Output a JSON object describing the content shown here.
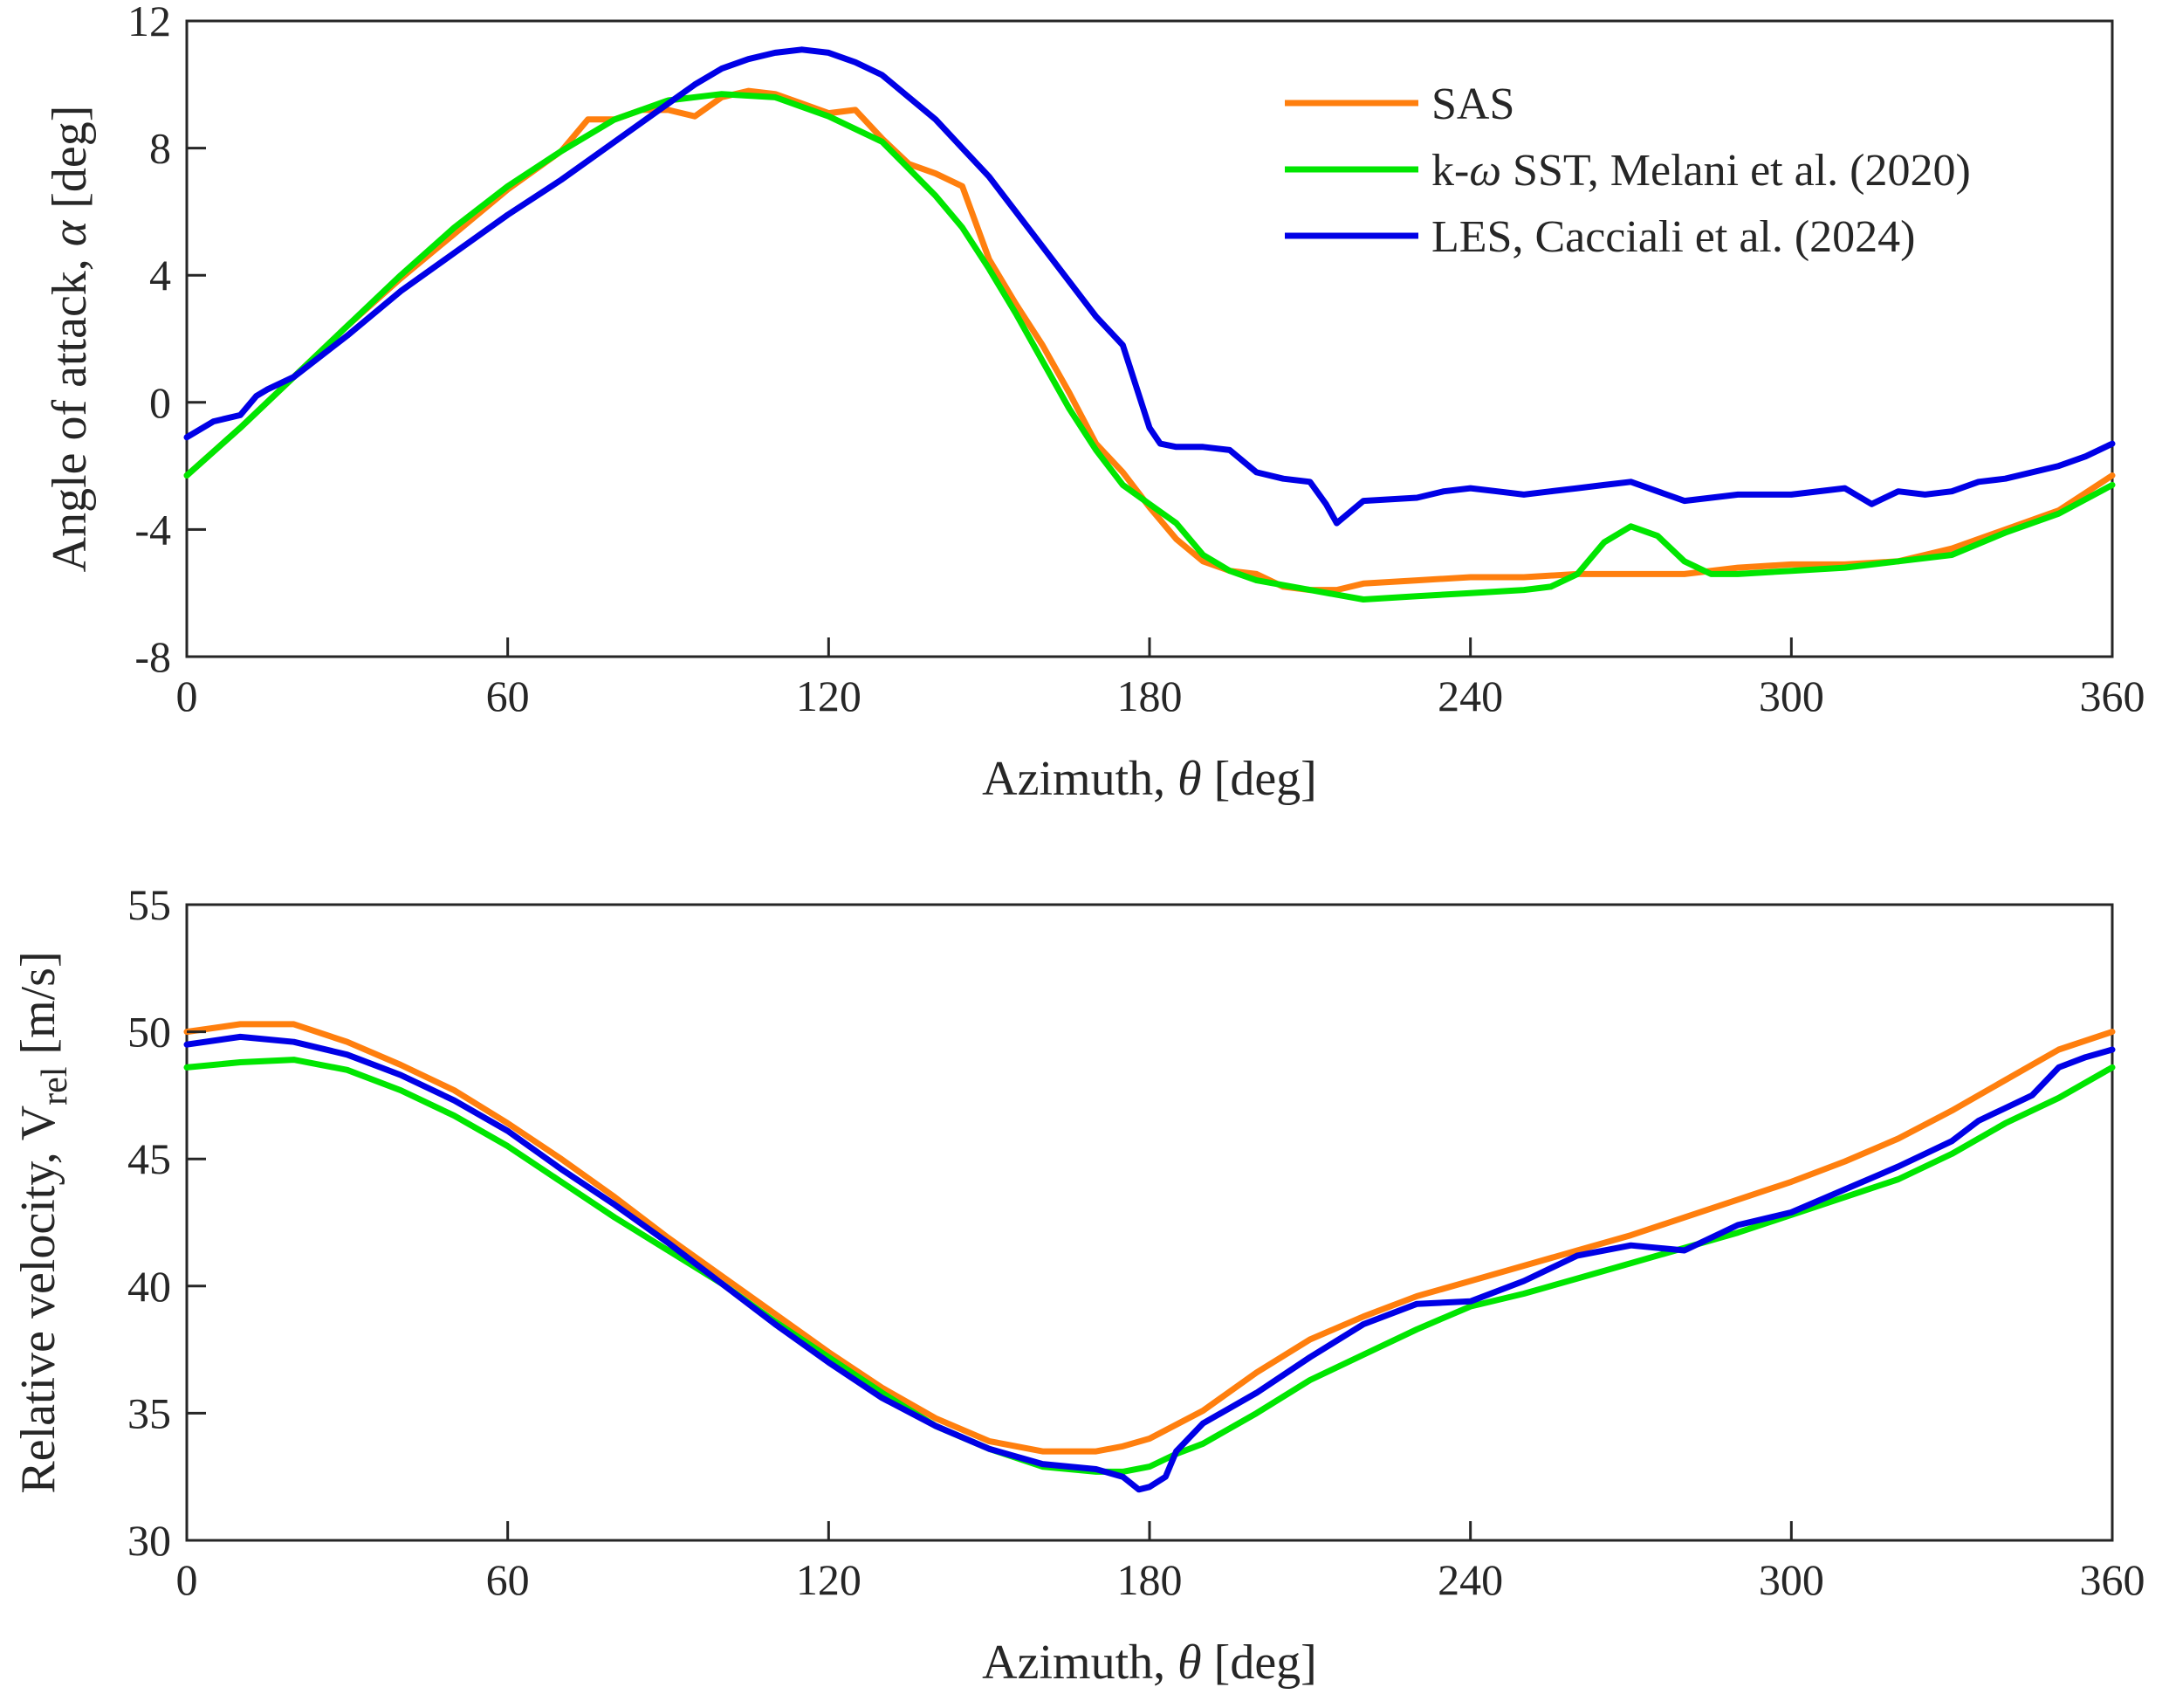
{
  "colors": {
    "sas": "#FF7F0E",
    "sst": "#00E600",
    "les": "#0000E6",
    "axis": "#262626"
  },
  "chart_data": [
    {
      "type": "line",
      "xlabel": "Azimuth, θ [deg]",
      "xlabel_pre": "Azimuth, ",
      "xlabel_sym": "θ",
      "xlabel_post": " [deg]",
      "ylabel": "Angle of attack, α [deg]",
      "ylabel_pre": "Angle of attack, ",
      "ylabel_sym": "α",
      "ylabel_post": " [deg]",
      "xlim": [
        0,
        360
      ],
      "ylim": [
        -8,
        12
      ],
      "xticks": [
        0,
        60,
        120,
        180,
        240,
        300,
        360
      ],
      "xtick_labels": [
        "0",
        "60",
        "120",
        "180",
        "240",
        "300",
        "360"
      ],
      "yticks": [
        -8,
        -4,
        0,
        4,
        8,
        12
      ],
      "ytick_labels": [
        "-8",
        "-4",
        "0",
        "4",
        "8",
        "12"
      ],
      "legend": {
        "position": "top-right",
        "entries": [
          {
            "label": "SAS",
            "pre": "SAS",
            "sym": "",
            "post": ""
          },
          {
            "label": "k-ω SST, Melani et al. (2020)",
            "pre": "k-",
            "sym": "ω",
            "post": " SST, Melani et al. (2020)"
          },
          {
            "label": "LES, Cacciali et al. (2024)",
            "pre": "LES, Cacciali et al. (2024)",
            "sym": "",
            "post": ""
          }
        ]
      },
      "series": [
        {
          "name": "SAS",
          "x": [
            0,
            10,
            20,
            30,
            40,
            50,
            60,
            70,
            75,
            80,
            85,
            90,
            95,
            100,
            105,
            110,
            115,
            120,
            125,
            130,
            135,
            140,
            145,
            150,
            155,
            160,
            165,
            170,
            175,
            180,
            185,
            190,
            195,
            200,
            205,
            210,
            215,
            220,
            230,
            240,
            250,
            260,
            270,
            280,
            290,
            300,
            310,
            320,
            330,
            340,
            350,
            360
          ],
          "y": [
            -2.3,
            -0.8,
            0.8,
            2.4,
            3.9,
            5.3,
            6.7,
            7.9,
            8.9,
            8.9,
            9.2,
            9.2,
            9.0,
            9.6,
            9.8,
            9.7,
            9.4,
            9.1,
            9.2,
            8.3,
            7.5,
            7.2,
            6.8,
            4.5,
            3.1,
            1.8,
            0.3,
            -1.3,
            -2.2,
            -3.3,
            -4.3,
            -5.0,
            -5.3,
            -5.4,
            -5.8,
            -5.9,
            -5.9,
            -5.7,
            -5.6,
            -5.5,
            -5.5,
            -5.4,
            -5.4,
            -5.4,
            -5.2,
            -5.1,
            -5.1,
            -5.0,
            -4.6,
            -4.0,
            -3.4,
            -2.3
          ]
        },
        {
          "name": "k-ω SST, Melani et al. (2020)",
          "x": [
            0,
            10,
            20,
            30,
            40,
            50,
            60,
            70,
            80,
            90,
            100,
            110,
            120,
            130,
            140,
            145,
            150,
            155,
            160,
            165,
            170,
            175,
            180,
            185,
            190,
            195,
            200,
            210,
            220,
            230,
            240,
            250,
            255,
            260,
            265,
            270,
            275,
            280,
            285,
            290,
            300,
            310,
            320,
            330,
            340,
            350,
            360
          ],
          "y": [
            -2.3,
            -0.8,
            0.8,
            2.4,
            4.0,
            5.5,
            6.8,
            7.9,
            8.9,
            9.5,
            9.7,
            9.6,
            9.0,
            8.2,
            6.5,
            5.5,
            4.2,
            2.8,
            1.3,
            -0.2,
            -1.5,
            -2.6,
            -3.2,
            -3.8,
            -4.8,
            -5.3,
            -5.6,
            -5.9,
            -6.2,
            -6.1,
            -6.0,
            -5.9,
            -5.8,
            -5.4,
            -4.4,
            -3.9,
            -4.2,
            -5.0,
            -5.4,
            -5.4,
            -5.3,
            -5.2,
            -5.0,
            -4.8,
            -4.1,
            -3.5,
            -2.6
          ]
        },
        {
          "name": "LES, Cacciali et al. (2024)",
          "x": [
            0,
            5,
            10,
            13,
            15,
            20,
            30,
            40,
            50,
            60,
            70,
            80,
            90,
            95,
            100,
            105,
            110,
            115,
            120,
            125,
            130,
            135,
            140,
            145,
            150,
            155,
            160,
            165,
            170,
            175,
            180,
            182,
            185,
            190,
            195,
            200,
            205,
            210,
            213,
            215,
            220,
            230,
            235,
            240,
            245,
            250,
            255,
            260,
            265,
            270,
            275,
            280,
            290,
            300,
            310,
            315,
            320,
            325,
            330,
            335,
            340,
            350,
            355,
            360
          ],
          "y": [
            -1.1,
            -0.6,
            -0.4,
            0.2,
            0.4,
            0.8,
            2.1,
            3.5,
            4.7,
            5.9,
            7.0,
            8.2,
            9.4,
            10.0,
            10.5,
            10.8,
            11.0,
            11.1,
            11.0,
            10.7,
            10.3,
            9.6,
            8.9,
            8.0,
            7.1,
            6.0,
            4.9,
            3.8,
            2.7,
            1.8,
            -0.8,
            -1.3,
            -1.4,
            -1.4,
            -1.5,
            -2.2,
            -2.4,
            -2.5,
            -3.2,
            -3.8,
            -3.1,
            -3.0,
            -2.8,
            -2.7,
            -2.8,
            -2.9,
            -2.8,
            -2.7,
            -2.6,
            -2.5,
            -2.8,
            -3.1,
            -2.9,
            -2.9,
            -2.7,
            -3.2,
            -2.8,
            -2.9,
            -2.8,
            -2.5,
            -2.4,
            -2.0,
            -1.7,
            -1.3
          ]
        }
      ]
    },
    {
      "type": "line",
      "xlabel": "Azimuth, θ [deg]",
      "xlabel_pre": "Azimuth, ",
      "xlabel_sym": "θ",
      "xlabel_post": " [deg]",
      "ylabel": "Relative velocity, V_rel [m/s]",
      "ylabel_pre": "Relative velocity, V",
      "ylabel_sub": "rel",
      "ylabel_post": " [m/s]",
      "xlim": [
        0,
        360
      ],
      "ylim": [
        30,
        55
      ],
      "xticks": [
        0,
        60,
        120,
        180,
        240,
        300,
        360
      ],
      "xtick_labels": [
        "0",
        "60",
        "120",
        "180",
        "240",
        "300",
        "360"
      ],
      "yticks": [
        30,
        35,
        40,
        45,
        50,
        55
      ],
      "ytick_labels": [
        "30",
        "35",
        "40",
        "45",
        "50",
        "55"
      ],
      "series": [
        {
          "name": "SAS",
          "x": [
            0,
            10,
            20,
            30,
            40,
            50,
            60,
            70,
            80,
            90,
            100,
            110,
            120,
            130,
            140,
            150,
            160,
            170,
            175,
            180,
            190,
            200,
            210,
            220,
            230,
            240,
            250,
            260,
            270,
            280,
            290,
            300,
            310,
            320,
            330,
            340,
            350,
            360
          ],
          "y": [
            50.0,
            50.3,
            50.3,
            49.6,
            48.7,
            47.7,
            46.4,
            45.0,
            43.5,
            41.9,
            40.4,
            38.9,
            37.4,
            36.0,
            34.8,
            33.9,
            33.5,
            33.5,
            33.7,
            34.0,
            35.1,
            36.6,
            37.9,
            38.8,
            39.6,
            40.2,
            40.8,
            41.4,
            42.0,
            42.7,
            43.4,
            44.1,
            44.9,
            45.8,
            46.9,
            48.1,
            49.3,
            50.0
          ]
        },
        {
          "name": "k-ω SST, Melani et al. (2020)",
          "x": [
            0,
            10,
            20,
            30,
            40,
            50,
            60,
            70,
            80,
            90,
            100,
            110,
            120,
            130,
            140,
            150,
            160,
            170,
            175,
            180,
            185,
            190,
            200,
            210,
            220,
            230,
            240,
            250,
            260,
            270,
            280,
            290,
            300,
            310,
            320,
            330,
            340,
            350,
            360
          ],
          "y": [
            48.6,
            48.8,
            48.9,
            48.5,
            47.7,
            46.7,
            45.5,
            44.1,
            42.7,
            41.4,
            40.1,
            38.6,
            37.2,
            35.8,
            34.5,
            33.6,
            32.9,
            32.7,
            32.7,
            32.9,
            33.4,
            33.8,
            35.0,
            36.3,
            37.3,
            38.3,
            39.2,
            39.7,
            40.3,
            40.9,
            41.5,
            42.1,
            42.8,
            43.5,
            44.2,
            45.2,
            46.4,
            47.4,
            48.6
          ]
        },
        {
          "name": "LES, Cacciali et al. (2024)",
          "x": [
            0,
            10,
            20,
            30,
            40,
            50,
            60,
            70,
            80,
            90,
            100,
            110,
            120,
            130,
            140,
            150,
            160,
            170,
            175,
            178,
            180,
            183,
            185,
            190,
            200,
            210,
            220,
            230,
            240,
            250,
            260,
            270,
            280,
            290,
            300,
            310,
            320,
            330,
            335,
            340,
            345,
            350,
            355,
            360
          ],
          "y": [
            49.5,
            49.8,
            49.6,
            49.1,
            48.3,
            47.3,
            46.1,
            44.6,
            43.2,
            41.7,
            40.1,
            38.5,
            37.0,
            35.6,
            34.5,
            33.6,
            33.0,
            32.8,
            32.5,
            32.0,
            32.1,
            32.5,
            33.5,
            34.6,
            35.8,
            37.2,
            38.5,
            39.3,
            39.4,
            40.2,
            41.2,
            41.6,
            41.4,
            42.4,
            42.9,
            43.8,
            44.7,
            45.7,
            46.5,
            47.0,
            47.5,
            48.6,
            49.0,
            49.3
          ]
        }
      ]
    }
  ]
}
